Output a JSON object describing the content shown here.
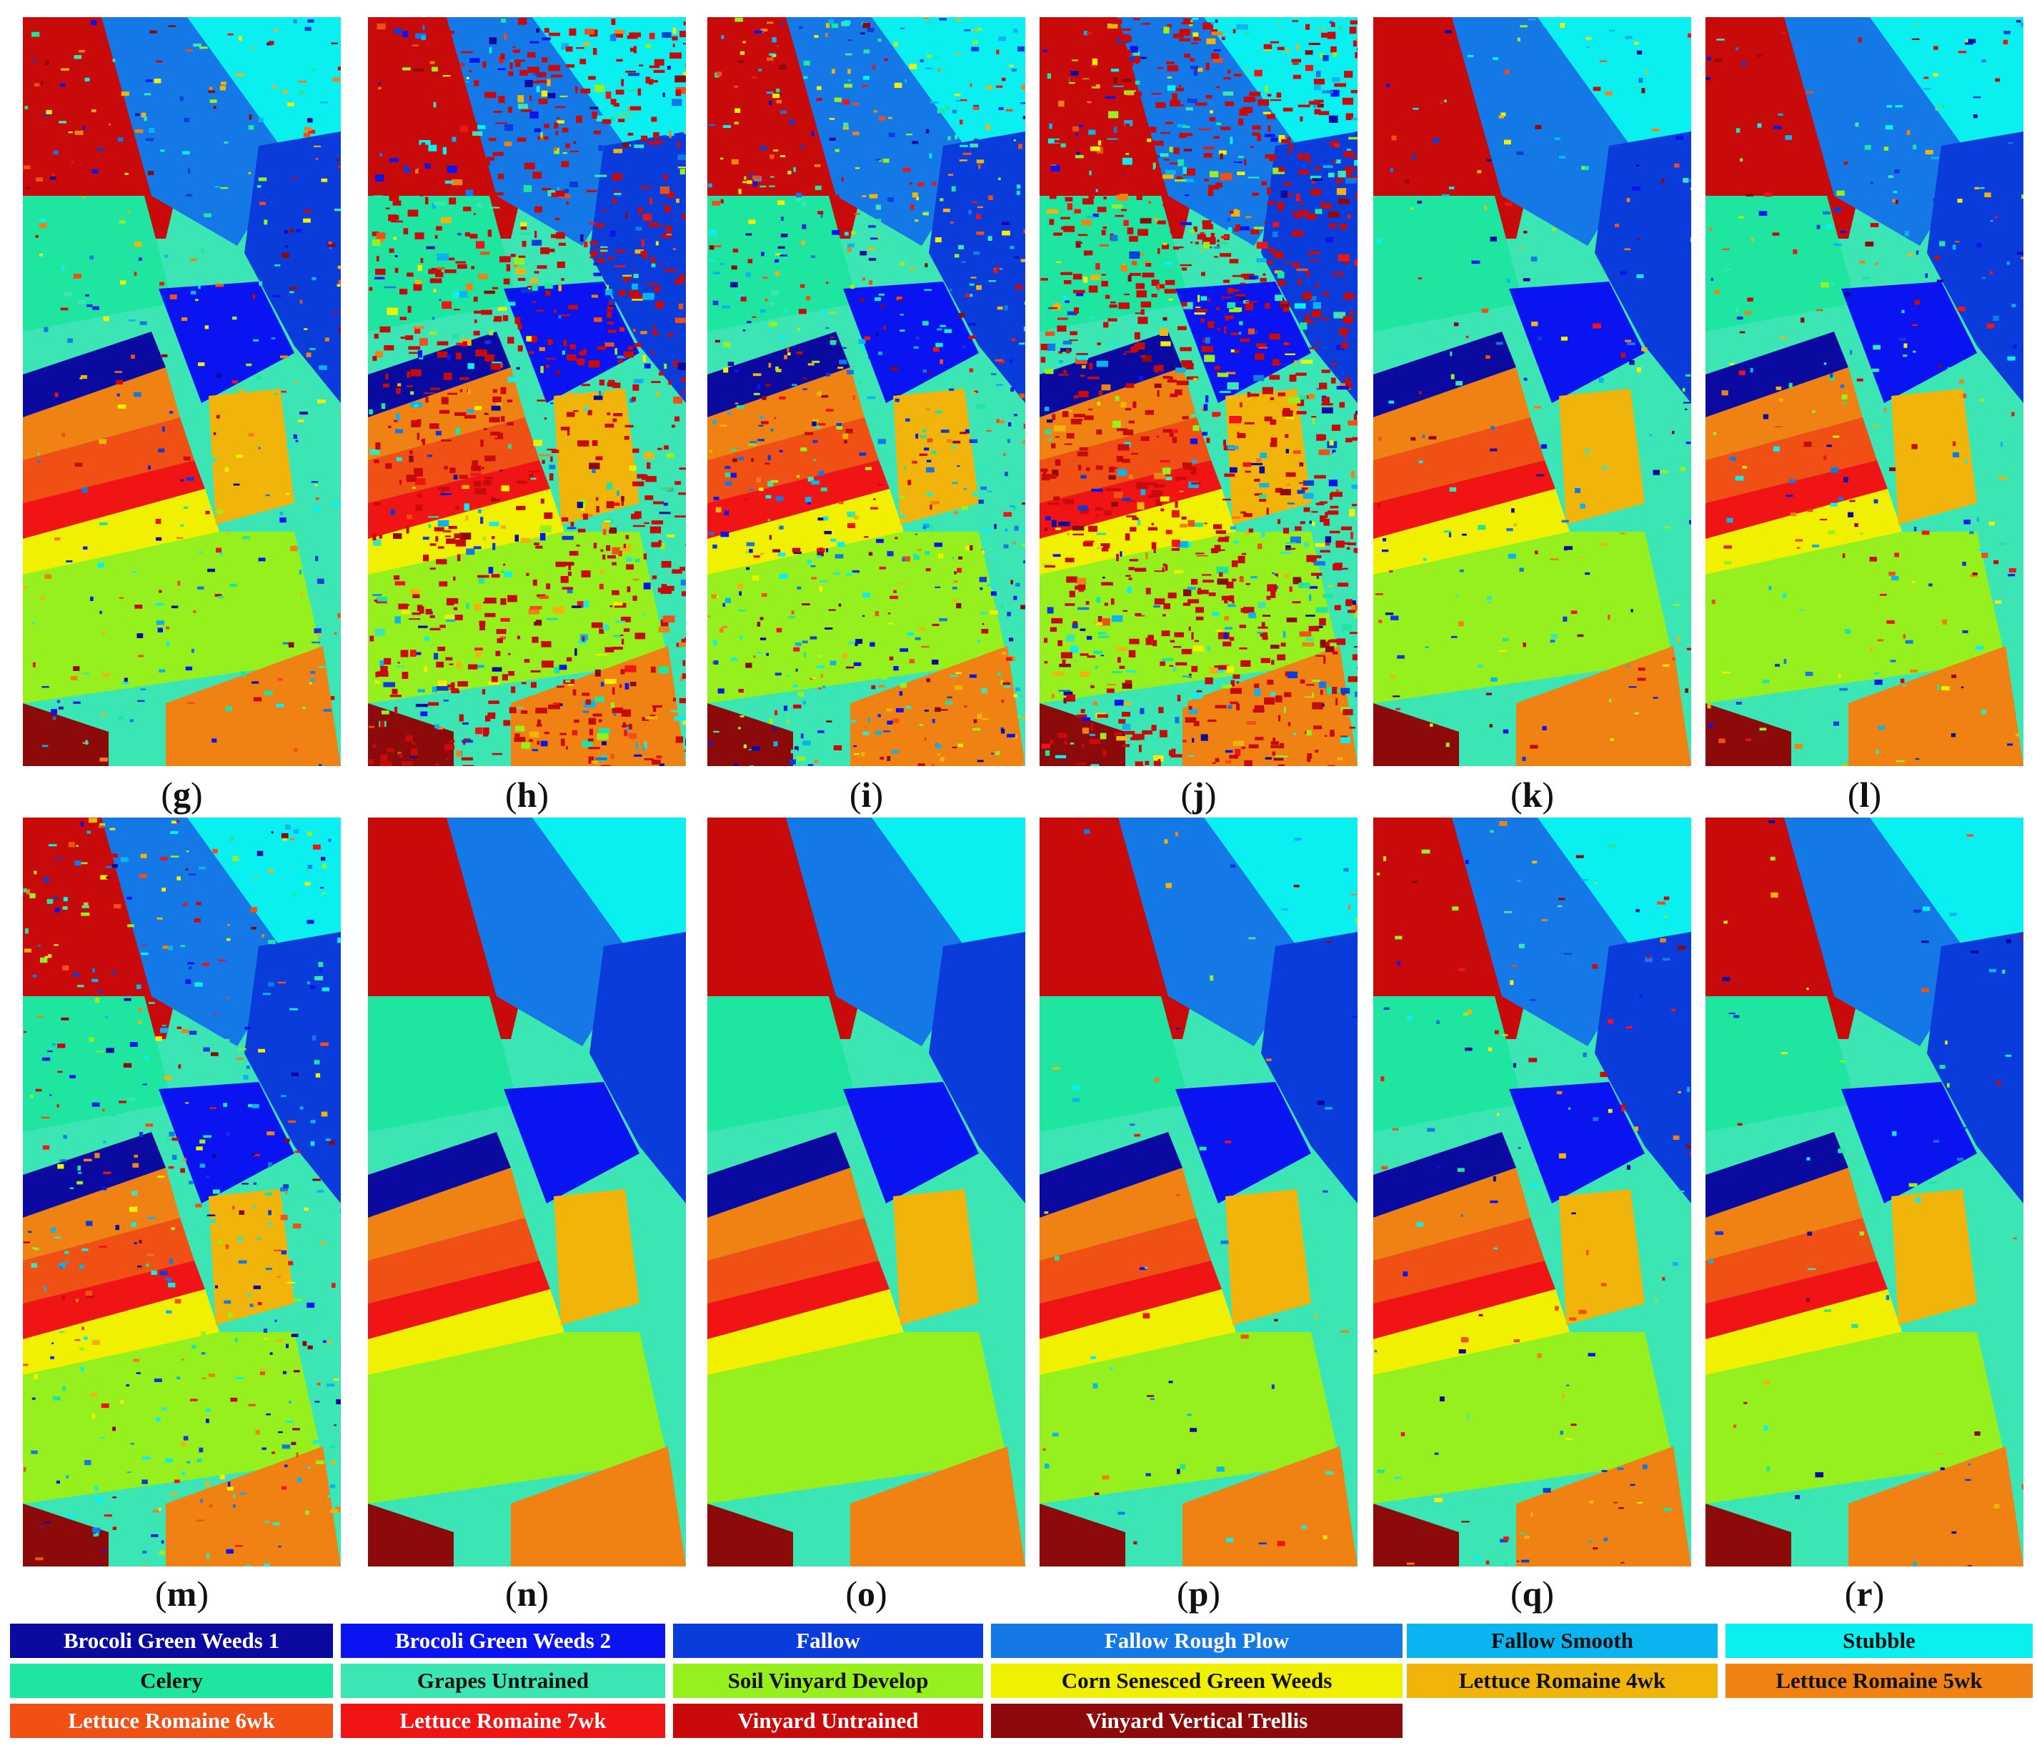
{
  "panels": [
    {
      "label": "g",
      "noise": 0.25,
      "style": "good"
    },
    {
      "label": "h",
      "noise": 0.85,
      "style": "bad"
    },
    {
      "label": "i",
      "noise": 0.6,
      "style": "mid"
    },
    {
      "label": "j",
      "noise": 1.0,
      "style": "bad"
    },
    {
      "label": "k",
      "noise": 0.15,
      "style": "good"
    },
    {
      "label": "l",
      "noise": 0.2,
      "style": "good"
    },
    {
      "label": "m",
      "noise": 0.35,
      "style": "mid"
    },
    {
      "label": "n",
      "noise": 0.0,
      "style": "smooth"
    },
    {
      "label": "o",
      "noise": 0.0,
      "style": "smooth"
    },
    {
      "label": "p",
      "noise": 0.05,
      "style": "smooth"
    },
    {
      "label": "q",
      "noise": 0.1,
      "style": "smooth"
    },
    {
      "label": "r",
      "noise": 0.05,
      "style": "smooth"
    }
  ],
  "legend": [
    {
      "name": "Brocoli Green Weeds 1",
      "color": "#0a0aa0",
      "text_color": "#ffffff"
    },
    {
      "name": "Brocoli Green Weeds 2",
      "color": "#0a14f0",
      "text_color": "#ffffff"
    },
    {
      "name": "Fallow",
      "color": "#0a3cdc",
      "text_color": "#ffffff"
    },
    {
      "name": "Fallow Rough Plow",
      "color": "#1478e6",
      "text_color": "#ffffff"
    },
    {
      "name": "Fallow Smooth",
      "color": "#0ab4f0",
      "text_color": "#111111"
    },
    {
      "name": "Stubble",
      "color": "#0af0f0",
      "text_color": "#111111"
    },
    {
      "name": "Celery",
      "color": "#1ee6a0",
      "text_color": "#111111"
    },
    {
      "name": "Grapes Untrained",
      "color": "#3ce6b4",
      "text_color": "#111111"
    },
    {
      "name": "Soil Vinyard Develop",
      "color": "#96f01e",
      "text_color": "#111111"
    },
    {
      "name": "Corn Senesced Green Weeds",
      "color": "#f0f000",
      "text_color": "#111111"
    },
    {
      "name": "Lettuce Romaine 4wk",
      "color": "#f0b40a",
      "text_color": "#111111"
    },
    {
      "name": "Lettuce Romaine 5wk",
      "color": "#f08214",
      "text_color": "#111111"
    },
    {
      "name": "Lettuce Romaine 6wk",
      "color": "#f05014",
      "text_color": "#ffffff"
    },
    {
      "name": "Lettuce Romaine 7wk",
      "color": "#f01414",
      "text_color": "#ffffff"
    },
    {
      "name": "Vinyard Untrained",
      "color": "#c80a0a",
      "text_color": "#ffffff"
    },
    {
      "name": "Vinyard Vertical Trellis",
      "color": "#8c0a0a",
      "text_color": "#ffffff"
    }
  ]
}
